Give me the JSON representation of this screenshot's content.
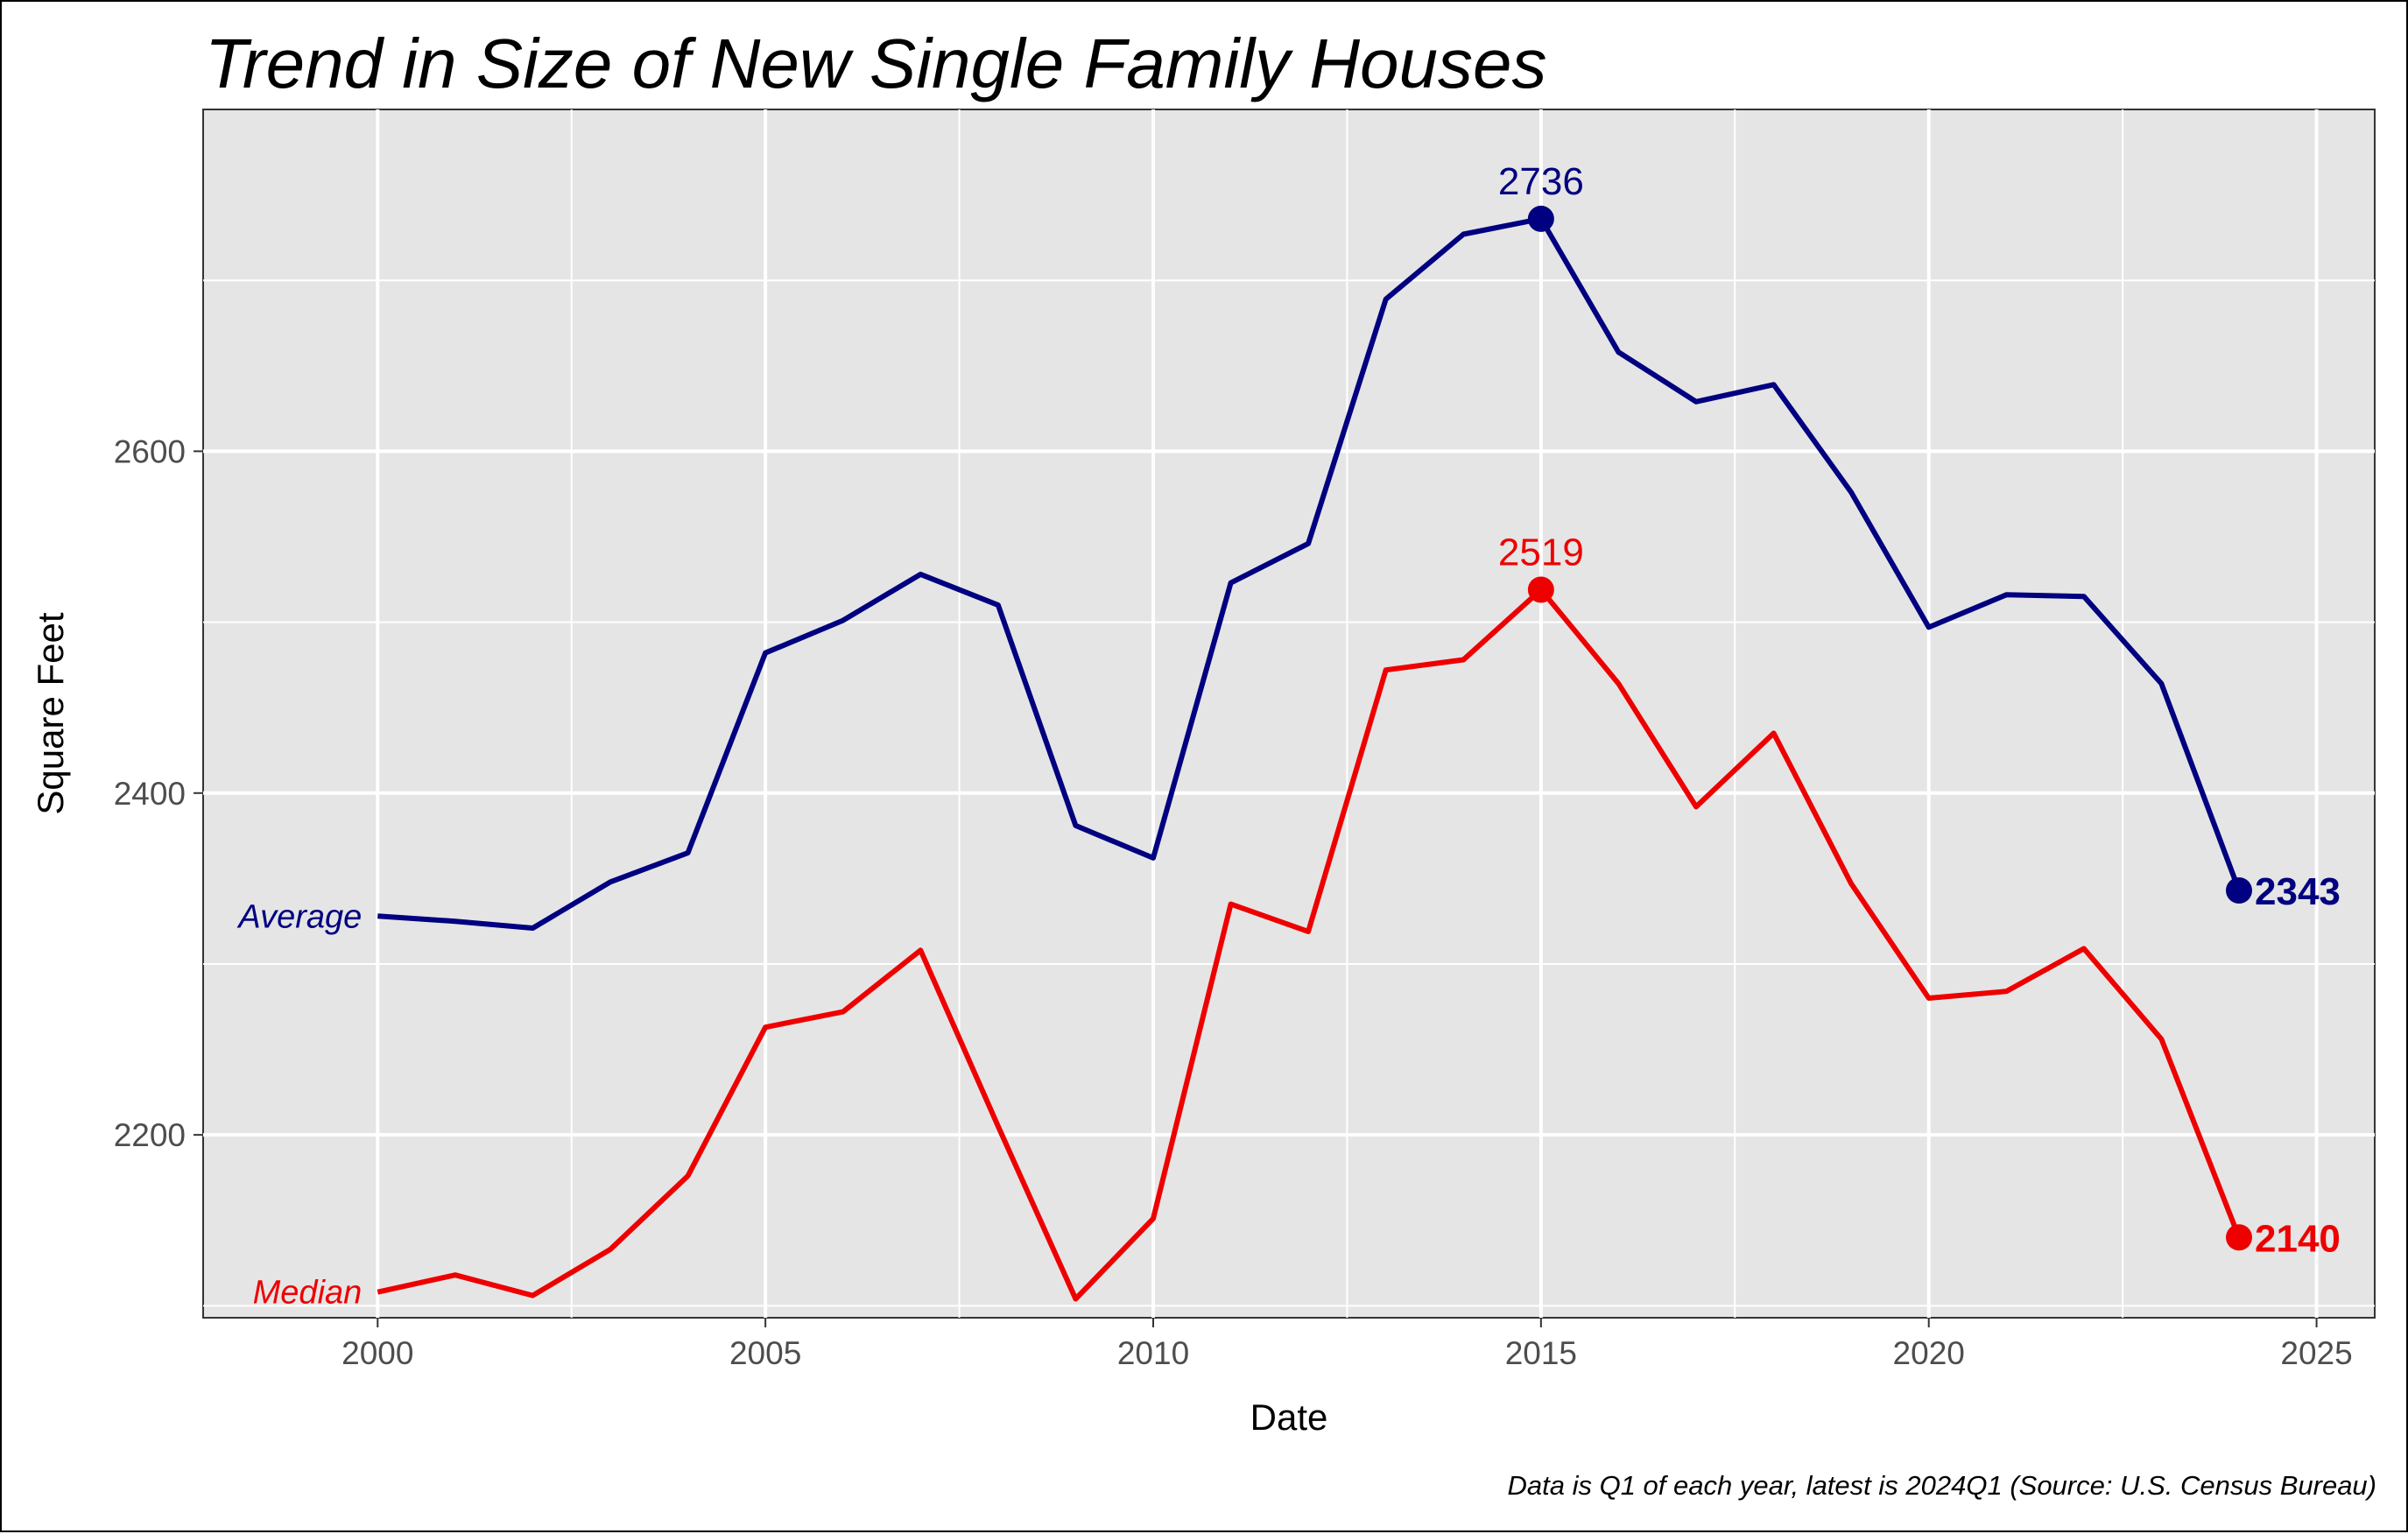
{
  "chart_data": {
    "type": "line",
    "title": "Trend in Size of New Single Family Houses",
    "xlabel": "Date",
    "ylabel": "Square Feet",
    "caption": "Data is Q1 of each year, latest is 2024Q1 (Source: U.S. Census Bureau)",
    "xlim": [
      1997.75,
      2025.75
    ],
    "ylim": [
      2093,
      2800
    ],
    "x_ticks": [
      2000,
      2005,
      2010,
      2015,
      2020,
      2025
    ],
    "x_tick_labels": [
      "2000",
      "2005",
      "2010",
      "2015",
      "2020",
      "2025"
    ],
    "y_ticks": [
      2200,
      2400,
      2600
    ],
    "y_tick_labels": [
      "2200",
      "2400",
      "2600"
    ],
    "grid": true,
    "legend": "none",
    "x": [
      2000,
      2001,
      2002,
      2003,
      2004,
      2005,
      2006,
      2007,
      2008,
      2009,
      2010,
      2011,
      2012,
      2013,
      2014,
      2015,
      2016,
      2017,
      2018,
      2019,
      2020,
      2021,
      2022,
      2023,
      2024
    ],
    "series": [
      {
        "name": "Average",
        "color": "#000080",
        "values": [
          2328,
          2325,
          2321,
          2348,
          2365,
          2482,
          2501,
          2528,
          2510,
          2381,
          2362,
          2523,
          2546,
          2689,
          2727,
          2736,
          2658,
          2629,
          2639,
          2576,
          2497,
          2516,
          2515,
          2464,
          2343
        ],
        "peak": {
          "x": 2015,
          "value": 2736,
          "label": "2736"
        },
        "last": {
          "x": 2024,
          "value": 2343,
          "label": "2343"
        }
      },
      {
        "name": "Median",
        "color": "#ee0000",
        "values": [
          2108,
          2118,
          2106,
          2133,
          2176,
          2263,
          2272,
          2308,
          2205,
          2104,
          2151,
          2335,
          2319,
          2472,
          2478,
          2519,
          2464,
          2392,
          2435,
          2347,
          2280,
          2284,
          2309,
          2256,
          2140
        ],
        "peak": {
          "x": 2015,
          "value": 2519,
          "label": "2519"
        },
        "last": {
          "x": 2024,
          "value": 2140,
          "label": "2140"
        }
      }
    ]
  }
}
